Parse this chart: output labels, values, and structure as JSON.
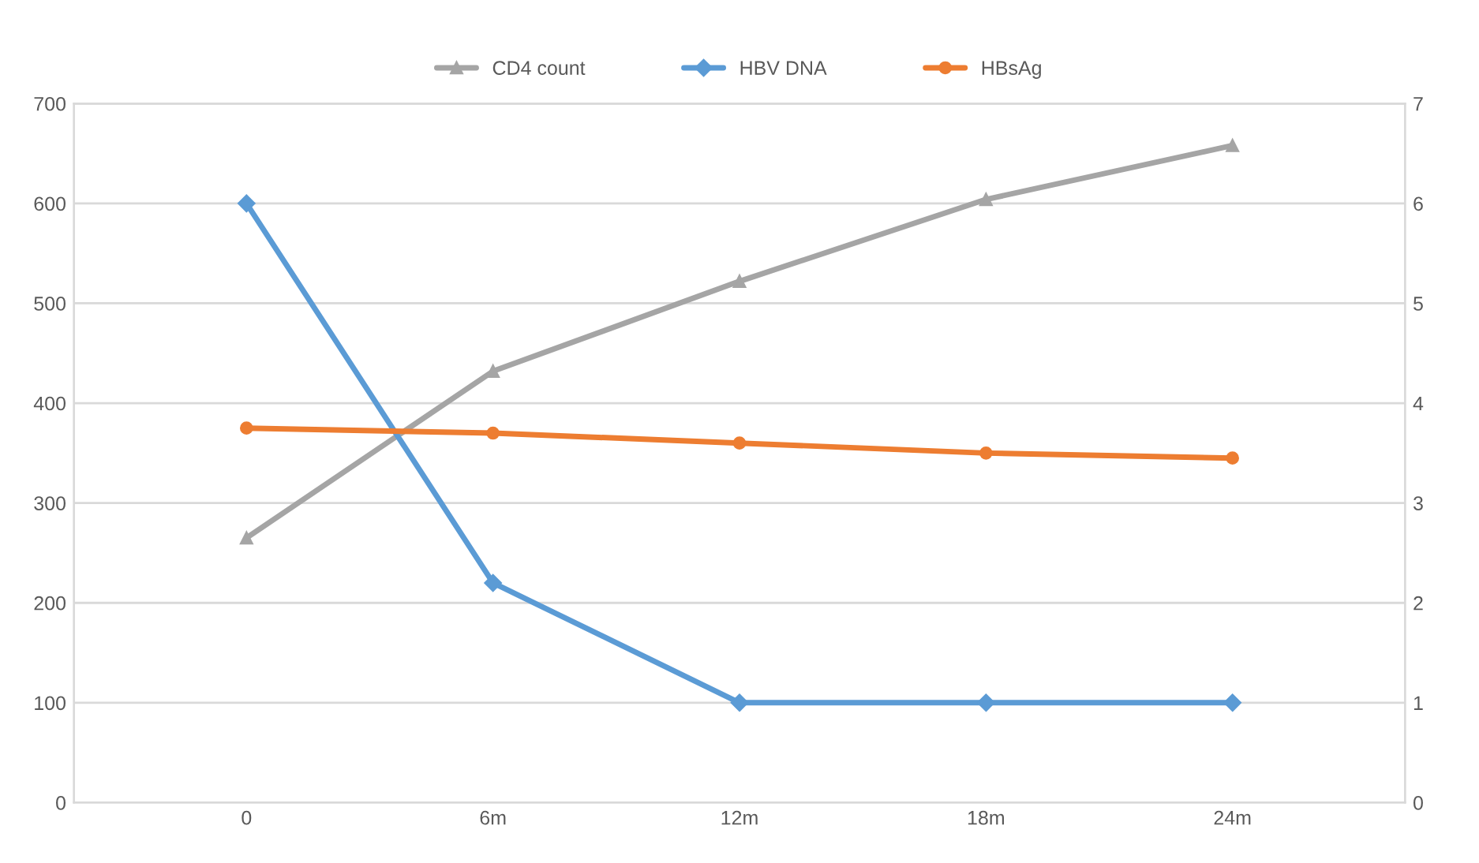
{
  "chart_data": {
    "type": "line",
    "categories": [
      "0",
      "6m",
      "12m",
      "18m",
      "24m"
    ],
    "series": [
      {
        "name": "CD4 count",
        "color": "#a5a5a5",
        "marker": "triangle",
        "values": [
          265,
          432,
          522,
          604,
          658
        ]
      },
      {
        "name": "HBV DNA",
        "color": "#5b9bd5",
        "marker": "diamond",
        "axis": "y2",
        "values": [
          6.0,
          2.2,
          1.0,
          1.0,
          1.0
        ]
      },
      {
        "name": "HBsAg",
        "color": "#ed7d31",
        "marker": "circle",
        "axis": "y2",
        "values": [
          3.75,
          3.7,
          3.6,
          3.5,
          3.45
        ]
      }
    ],
    "ylim": [
      0,
      700
    ],
    "yticks": [
      0,
      100,
      200,
      300,
      400,
      500,
      600,
      700
    ],
    "y2lim": [
      0,
      7
    ],
    "y2ticks": [
      0,
      1,
      2,
      3,
      4,
      5,
      6,
      7
    ],
    "grid": "y",
    "legend": "top",
    "line_style": "solid"
  }
}
